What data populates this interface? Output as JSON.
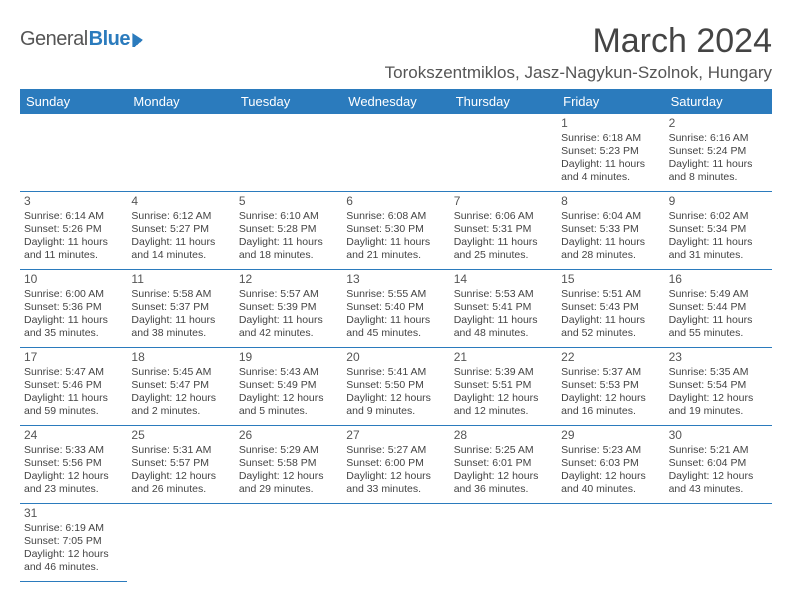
{
  "logo": {
    "part1": "General",
    "part2": "Blue"
  },
  "title": "March 2024",
  "location": "Torokszentmiklos, Jasz-Nagykun-Szolnok, Hungary",
  "daysOfWeek": [
    "Sunday",
    "Monday",
    "Tuesday",
    "Wednesday",
    "Thursday",
    "Friday",
    "Saturday"
  ],
  "labels": {
    "sunrise": "Sunrise:",
    "sunset": "Sunset:",
    "daylight": "Daylight:"
  },
  "colors": {
    "accent": "#2b7bbd",
    "text": "#444444",
    "background": "#ffffff"
  },
  "firstWeekdayIndex": 5,
  "days": [
    {
      "n": 1,
      "sunrise": "6:18 AM",
      "sunset": "5:23 PM",
      "dl1": "11 hours",
      "dl2": "and 4 minutes."
    },
    {
      "n": 2,
      "sunrise": "6:16 AM",
      "sunset": "5:24 PM",
      "dl1": "11 hours",
      "dl2": "and 8 minutes."
    },
    {
      "n": 3,
      "sunrise": "6:14 AM",
      "sunset": "5:26 PM",
      "dl1": "11 hours",
      "dl2": "and 11 minutes."
    },
    {
      "n": 4,
      "sunrise": "6:12 AM",
      "sunset": "5:27 PM",
      "dl1": "11 hours",
      "dl2": "and 14 minutes."
    },
    {
      "n": 5,
      "sunrise": "6:10 AM",
      "sunset": "5:28 PM",
      "dl1": "11 hours",
      "dl2": "and 18 minutes."
    },
    {
      "n": 6,
      "sunrise": "6:08 AM",
      "sunset": "5:30 PM",
      "dl1": "11 hours",
      "dl2": "and 21 minutes."
    },
    {
      "n": 7,
      "sunrise": "6:06 AM",
      "sunset": "5:31 PM",
      "dl1": "11 hours",
      "dl2": "and 25 minutes."
    },
    {
      "n": 8,
      "sunrise": "6:04 AM",
      "sunset": "5:33 PM",
      "dl1": "11 hours",
      "dl2": "and 28 minutes."
    },
    {
      "n": 9,
      "sunrise": "6:02 AM",
      "sunset": "5:34 PM",
      "dl1": "11 hours",
      "dl2": "and 31 minutes."
    },
    {
      "n": 10,
      "sunrise": "6:00 AM",
      "sunset": "5:36 PM",
      "dl1": "11 hours",
      "dl2": "and 35 minutes."
    },
    {
      "n": 11,
      "sunrise": "5:58 AM",
      "sunset": "5:37 PM",
      "dl1": "11 hours",
      "dl2": "and 38 minutes."
    },
    {
      "n": 12,
      "sunrise": "5:57 AM",
      "sunset": "5:39 PM",
      "dl1": "11 hours",
      "dl2": "and 42 minutes."
    },
    {
      "n": 13,
      "sunrise": "5:55 AM",
      "sunset": "5:40 PM",
      "dl1": "11 hours",
      "dl2": "and 45 minutes."
    },
    {
      "n": 14,
      "sunrise": "5:53 AM",
      "sunset": "5:41 PM",
      "dl1": "11 hours",
      "dl2": "and 48 minutes."
    },
    {
      "n": 15,
      "sunrise": "5:51 AM",
      "sunset": "5:43 PM",
      "dl1": "11 hours",
      "dl2": "and 52 minutes."
    },
    {
      "n": 16,
      "sunrise": "5:49 AM",
      "sunset": "5:44 PM",
      "dl1": "11 hours",
      "dl2": "and 55 minutes."
    },
    {
      "n": 17,
      "sunrise": "5:47 AM",
      "sunset": "5:46 PM",
      "dl1": "11 hours",
      "dl2": "and 59 minutes."
    },
    {
      "n": 18,
      "sunrise": "5:45 AM",
      "sunset": "5:47 PM",
      "dl1": "12 hours",
      "dl2": "and 2 minutes."
    },
    {
      "n": 19,
      "sunrise": "5:43 AM",
      "sunset": "5:49 PM",
      "dl1": "12 hours",
      "dl2": "and 5 minutes."
    },
    {
      "n": 20,
      "sunrise": "5:41 AM",
      "sunset": "5:50 PM",
      "dl1": "12 hours",
      "dl2": "and 9 minutes."
    },
    {
      "n": 21,
      "sunrise": "5:39 AM",
      "sunset": "5:51 PM",
      "dl1": "12 hours",
      "dl2": "and 12 minutes."
    },
    {
      "n": 22,
      "sunrise": "5:37 AM",
      "sunset": "5:53 PM",
      "dl1": "12 hours",
      "dl2": "and 16 minutes."
    },
    {
      "n": 23,
      "sunrise": "5:35 AM",
      "sunset": "5:54 PM",
      "dl1": "12 hours",
      "dl2": "and 19 minutes."
    },
    {
      "n": 24,
      "sunrise": "5:33 AM",
      "sunset": "5:56 PM",
      "dl1": "12 hours",
      "dl2": "and 23 minutes."
    },
    {
      "n": 25,
      "sunrise": "5:31 AM",
      "sunset": "5:57 PM",
      "dl1": "12 hours",
      "dl2": "and 26 minutes."
    },
    {
      "n": 26,
      "sunrise": "5:29 AM",
      "sunset": "5:58 PM",
      "dl1": "12 hours",
      "dl2": "and 29 minutes."
    },
    {
      "n": 27,
      "sunrise": "5:27 AM",
      "sunset": "6:00 PM",
      "dl1": "12 hours",
      "dl2": "and 33 minutes."
    },
    {
      "n": 28,
      "sunrise": "5:25 AM",
      "sunset": "6:01 PM",
      "dl1": "12 hours",
      "dl2": "and 36 minutes."
    },
    {
      "n": 29,
      "sunrise": "5:23 AM",
      "sunset": "6:03 PM",
      "dl1": "12 hours",
      "dl2": "and 40 minutes."
    },
    {
      "n": 30,
      "sunrise": "5:21 AM",
      "sunset": "6:04 PM",
      "dl1": "12 hours",
      "dl2": "and 43 minutes."
    },
    {
      "n": 31,
      "sunrise": "6:19 AM",
      "sunset": "7:05 PM",
      "dl1": "12 hours",
      "dl2": "and 46 minutes."
    }
  ]
}
